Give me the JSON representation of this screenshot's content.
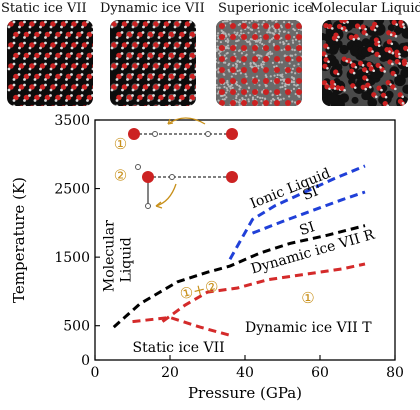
{
  "panels": [
    {
      "title": "Static ice VII",
      "style": "lattice"
    },
    {
      "title": "Dynamic ice VII",
      "style": "lattice-dynamic"
    },
    {
      "title": "Superionic ice",
      "style": "superionic"
    },
    {
      "title": "Molecular Liquid",
      "style": "liquid"
    }
  ],
  "colors": {
    "black_series": "#000000",
    "red_series": "#d42a2a",
    "blue_series": "#2040d8",
    "annotation": "#c8901a",
    "atom_oxygen": "#cc2222",
    "atom_hydrogen": "#dddddd"
  },
  "chart_data": {
    "type": "line",
    "xlabel": "Pressure (GPa)",
    "ylabel": "Temperature (K)",
    "xlim": [
      0,
      80
    ],
    "ylim": [
      0,
      3500
    ],
    "xticks": [
      0,
      20,
      40,
      60,
      80
    ],
    "yticks": [
      0,
      500,
      1500,
      2500,
      3500
    ],
    "series": [
      {
        "style": "black-dashed",
        "x": [
          5,
          12,
          22,
          30,
          36,
          44,
          52,
          62,
          72
        ],
        "y": [
          480,
          820,
          1140,
          1280,
          1370,
          1560,
          1700,
          1820,
          1960
        ]
      },
      {
        "style": "red-dashed",
        "x": [
          18,
          24,
          30,
          38,
          46,
          56,
          66,
          72
        ],
        "y": [
          560,
          800,
          990,
          1050,
          1170,
          1250,
          1330,
          1400
        ]
      },
      {
        "style": "red-dashed",
        "x": [
          10,
          20,
          28,
          36
        ],
        "y": [
          560,
          620,
          480,
          360
        ]
      },
      {
        "style": "blue-dashed",
        "x": [
          36,
          42,
          48,
          56,
          64,
          72
        ],
        "y": [
          1470,
          2050,
          2250,
          2450,
          2650,
          2830
        ]
      },
      {
        "style": "blue-dashed",
        "x": [
          42,
          50,
          58,
          66,
          72
        ],
        "y": [
          1850,
          2020,
          2180,
          2340,
          2450
        ]
      }
    ],
    "annotations": [
      {
        "text": "Ionic Liquid",
        "x": 42,
        "y": 2210,
        "rotate": -22,
        "color": "#000"
      },
      {
        "text": "SI'",
        "x": 56,
        "y": 2330,
        "rotate": -22,
        "color": "#000"
      },
      {
        "text": "SI",
        "x": 55,
        "y": 1820,
        "rotate": -18,
        "color": "#000"
      },
      {
        "text": "Dynamic ice VII R",
        "x": 42,
        "y": 1260,
        "rotate": -16,
        "color": "#000"
      },
      {
        "text": "Dynamic ice VII T",
        "x": 40,
        "y": 410,
        "rotate": 0,
        "color": "#000"
      },
      {
        "text": "Static ice VII",
        "x": 10,
        "y": 120,
        "rotate": 0,
        "color": "#000"
      },
      {
        "text": "Molecular",
        "x": 5,
        "y": 990,
        "rotate": -90,
        "color": "#000"
      },
      {
        "text": "Liquid",
        "x": 9.5,
        "y": 1130,
        "rotate": -90,
        "color": "#000"
      },
      {
        "text": "①+②",
        "x": 23,
        "y": 880,
        "rotate": -14,
        "color": "#c8901a"
      },
      {
        "text": "①",
        "x": 55,
        "y": 830,
        "rotate": 0,
        "color": "#c8901a"
      },
      {
        "text": "①",
        "x": 5,
        "y": 3080,
        "rotate": 0,
        "color": "#c8901a"
      },
      {
        "text": "②",
        "x": 5,
        "y": 2620,
        "rotate": 0,
        "color": "#c8901a"
      }
    ]
  }
}
